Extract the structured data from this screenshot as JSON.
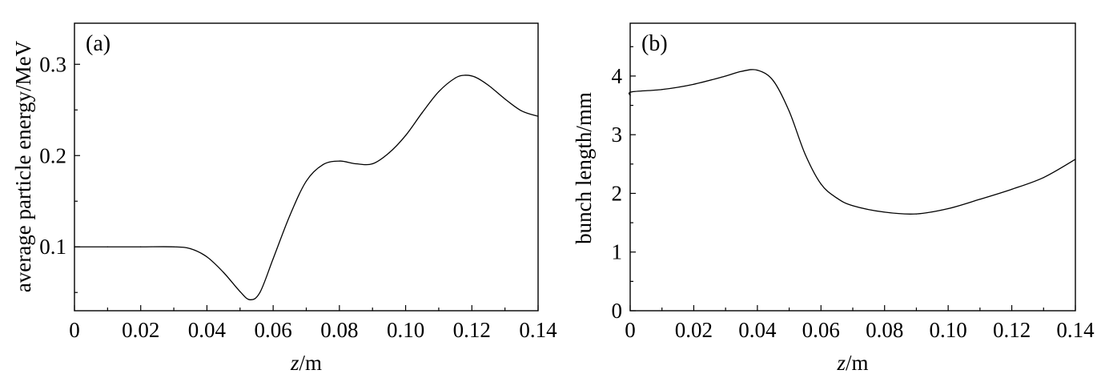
{
  "chart_data": [
    {
      "type": "line",
      "panel_label": "(a)",
      "xlabel_italic": "z",
      "xlabel_rest": "/m",
      "ylabel": "average particle energy/MeV",
      "xlim": [
        0,
        0.14
      ],
      "ylim": [
        0.03,
        0.345
      ],
      "xticks": [
        0,
        0.02,
        0.04,
        0.06,
        0.08,
        0.1,
        0.12,
        0.14
      ],
      "xtick_labels": [
        "0",
        "0.02",
        "0.04",
        "0.06",
        "0.08",
        "0.10",
        "0.12",
        "0.14"
      ],
      "yticks": [
        0.1,
        0.2,
        0.3
      ],
      "ytick_labels": [
        "0.1",
        "0.2",
        "0.3"
      ],
      "series": [
        {
          "x": [
            0,
            0.01,
            0.02,
            0.03,
            0.035,
            0.04,
            0.045,
            0.05,
            0.053,
            0.056,
            0.06,
            0.065,
            0.07,
            0.075,
            0.08,
            0.085,
            0.09,
            0.095,
            0.1,
            0.105,
            0.11,
            0.115,
            0.118,
            0.121,
            0.125,
            0.13,
            0.135,
            0.14
          ],
          "y": [
            0.1,
            0.1,
            0.1,
            0.1,
            0.098,
            0.089,
            0.072,
            0.051,
            0.042,
            0.05,
            0.087,
            0.134,
            0.172,
            0.19,
            0.194,
            0.191,
            0.191,
            0.203,
            0.222,
            0.247,
            0.27,
            0.285,
            0.288,
            0.286,
            0.277,
            0.262,
            0.249,
            0.243
          ]
        }
      ]
    },
    {
      "type": "line",
      "panel_label": "(b)",
      "xlabel_italic": "z",
      "xlabel_rest": "/m",
      "ylabel": "bunch length/mm",
      "xlim": [
        0,
        0.14
      ],
      "ylim": [
        0,
        4.9
      ],
      "xticks": [
        0,
        0.02,
        0.04,
        0.06,
        0.08,
        0.1,
        0.12,
        0.14
      ],
      "xtick_labels": [
        "0",
        "0.02",
        "0.04",
        "0.06",
        "0.08",
        "0.10",
        "0.12",
        "0.14"
      ],
      "yticks": [
        0,
        1,
        2,
        3,
        4
      ],
      "ytick_labels": [
        "0",
        "1",
        "2",
        "3",
        "4"
      ],
      "series": [
        {
          "x": [
            0,
            0.0005,
            0.01,
            0.02,
            0.03,
            0.035,
            0.04,
            0.045,
            0.05,
            0.055,
            0.06,
            0.065,
            0.07,
            0.08,
            0.09,
            0.1,
            0.11,
            0.12,
            0.13,
            0.14
          ],
          "y": [
            3.67,
            3.73,
            3.77,
            3.86,
            4.0,
            4.08,
            4.1,
            3.92,
            3.4,
            2.67,
            2.16,
            1.92,
            1.79,
            1.68,
            1.65,
            1.74,
            1.9,
            2.07,
            2.27,
            2.58
          ]
        }
      ]
    }
  ]
}
